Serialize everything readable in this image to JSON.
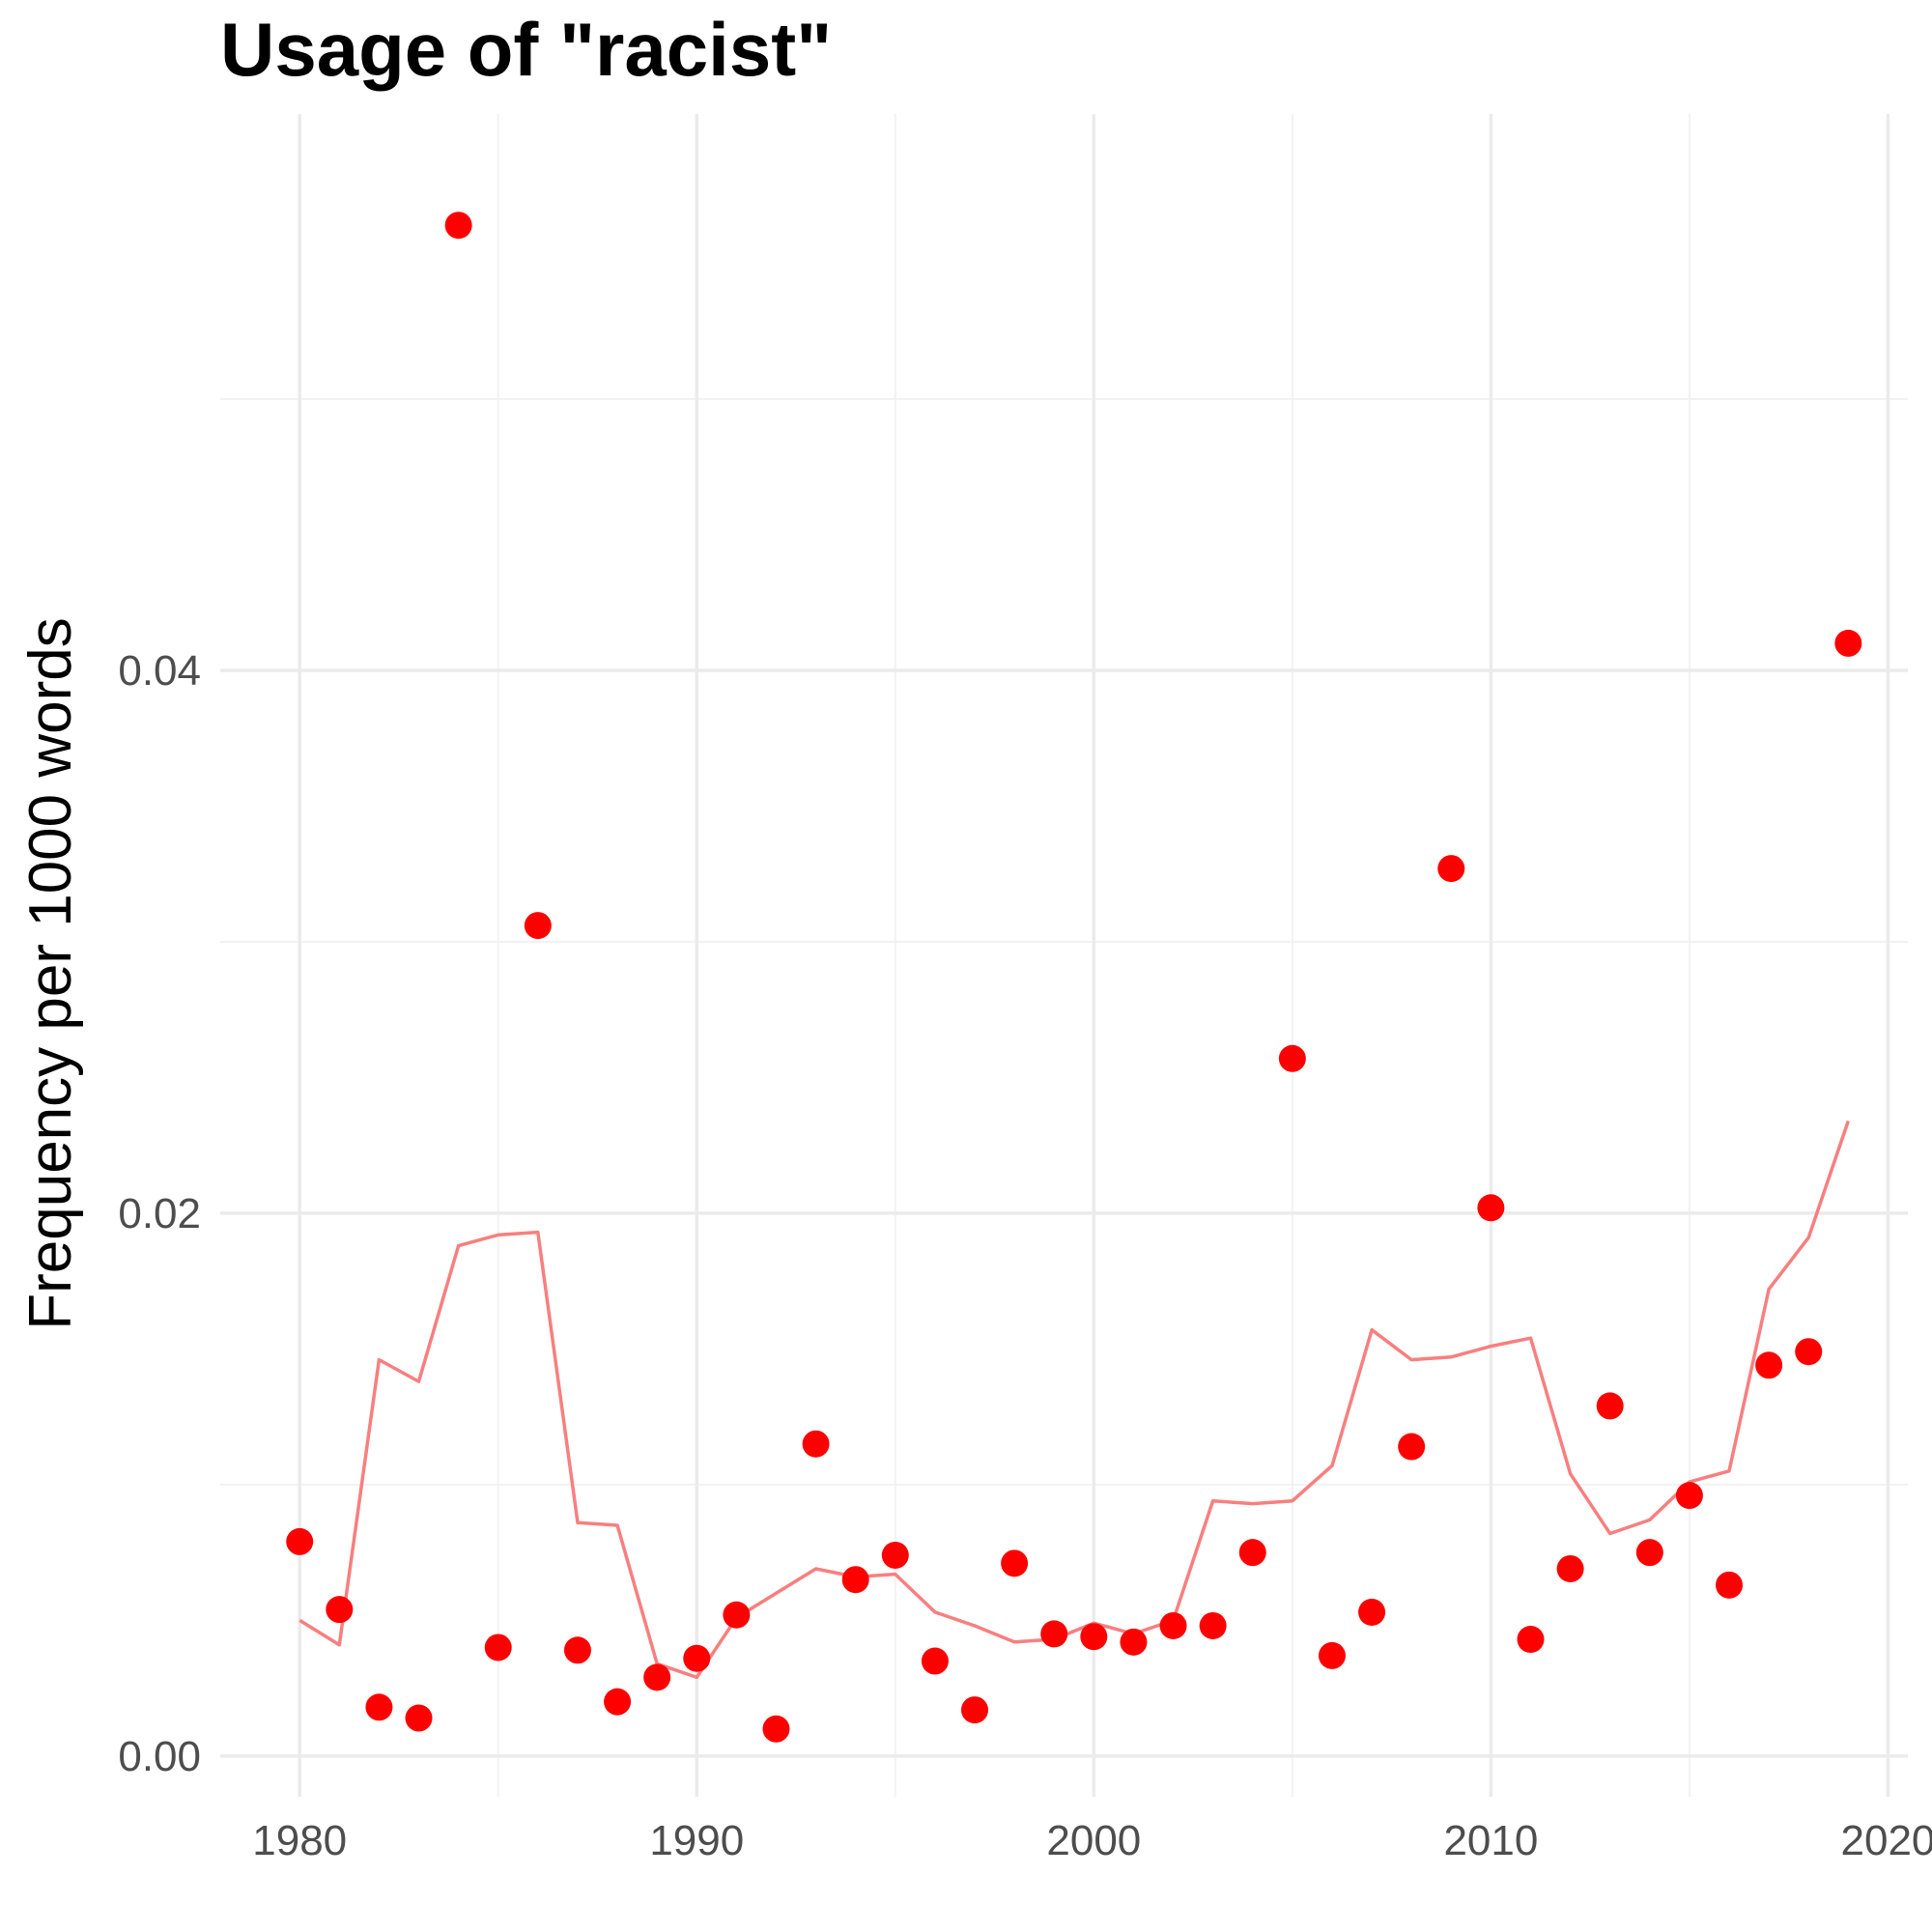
{
  "chart_data": {
    "type": "scatter",
    "title": "Usage of \"racist\"",
    "xlabel": "",
    "ylabel": "Frequency per 1000 words",
    "xlim": [
      1978,
      2020.5
    ],
    "ylim": [
      -0.0015,
      0.0605
    ],
    "x_ticks": [
      1980,
      1990,
      2000,
      2010,
      2020
    ],
    "x_tick_labels": [
      "1980",
      "1990",
      "2000",
      "2010",
      "2020"
    ],
    "y_ticks": [
      0.0,
      0.02,
      0.04
    ],
    "y_tick_labels": [
      "0.00",
      "0.02",
      "0.04"
    ],
    "grid": true,
    "legend": "none",
    "series": [
      {
        "kind": "points",
        "color": "#ff0000",
        "x": [
          1980,
          1981,
          1982,
          1983,
          1984,
          1985,
          1986,
          1987,
          1988,
          1989,
          1990,
          1991,
          1992,
          1993,
          1994,
          1995,
          1996,
          1997,
          1998,
          1999,
          2000,
          2001,
          2002,
          2003,
          2004,
          2005,
          2006,
          2007,
          2008,
          2009,
          2010,
          2011,
          2012,
          2013,
          2014,
          2015,
          2016,
          2017,
          2018,
          2019
        ],
        "y": [
          0.0079,
          0.0054,
          0.0018,
          0.0014,
          0.0564,
          0.004,
          0.0306,
          0.0039,
          0.002,
          0.0029,
          0.0036,
          0.0052,
          0.001,
          0.0115,
          0.0065,
          0.0074,
          0.0035,
          0.0017,
          0.0071,
          0.0045,
          0.0044,
          0.0042,
          0.0048,
          0.0048,
          0.0075,
          0.0257,
          0.0037,
          0.0053,
          0.0114,
          0.0327,
          0.0202,
          0.0043,
          0.0069,
          0.0129,
          0.0075,
          0.0096,
          0.0063,
          0.0144,
          0.0149,
          0.041
        ]
      },
      {
        "kind": "line",
        "color": "#f87f7f",
        "x": [
          1980,
          1981,
          1982,
          1983,
          1984,
          1985,
          1986,
          1987,
          1988,
          1989,
          1990,
          1991,
          1992,
          1993,
          1994,
          1995,
          1996,
          1997,
          1998,
          1999,
          2000,
          2001,
          2002,
          2003,
          2004,
          2005,
          2006,
          2007,
          2008,
          2009,
          2010,
          2011,
          2012,
          2013,
          2014,
          2015,
          2016,
          2017,
          2018,
          2019
        ],
        "y": [
          0.005,
          0.0041,
          0.0146,
          0.0138,
          0.0188,
          0.0192,
          0.0193,
          0.0086,
          0.0085,
          0.0034,
          0.0029,
          0.0051,
          0.006,
          0.0069,
          0.0066,
          0.0067,
          0.0053,
          0.0048,
          0.0042,
          0.0043,
          0.0049,
          0.0045,
          0.005,
          0.0094,
          0.0093,
          0.0094,
          0.0107,
          0.0157,
          0.0146,
          0.0147,
          0.0151,
          0.0154,
          0.0104,
          0.0082,
          0.0087,
          0.0101,
          0.0105,
          0.0172,
          0.0191,
          0.0234
        ]
      }
    ]
  }
}
